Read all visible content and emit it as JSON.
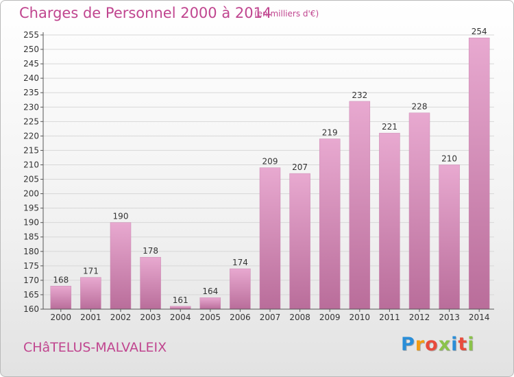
{
  "title": "Charges de Personnel 2000 à 2014",
  "subtitle": "(en milliers d'€)",
  "commune": "CHâTELUS-MALVALEIX",
  "logo": {
    "letters": [
      "P",
      "r",
      "o",
      "x",
      "i",
      "t",
      "i"
    ],
    "colors": [
      "#2a8ed8",
      "#f39c12",
      "#e84b3c",
      "#8bc34a",
      "#2a8ed8",
      "#e84b3c",
      "#8bc34a"
    ]
  },
  "colors": {
    "accent": "#c0458f",
    "bar_top": "#e8a9d0",
    "bar_bottom": "#b96d9a"
  },
  "chart_data": {
    "type": "bar",
    "categories": [
      "2000",
      "2001",
      "2002",
      "2003",
      "2004",
      "2005",
      "2006",
      "2007",
      "2008",
      "2009",
      "2010",
      "2011",
      "2012",
      "2013",
      "2014"
    ],
    "values": [
      168,
      171,
      190,
      178,
      161,
      164,
      174,
      209,
      207,
      219,
      232,
      221,
      228,
      210,
      254
    ],
    "ylim": [
      160,
      255
    ],
    "ytick_step": 5,
    "grid": true,
    "xlabel": "",
    "ylabel": ""
  }
}
